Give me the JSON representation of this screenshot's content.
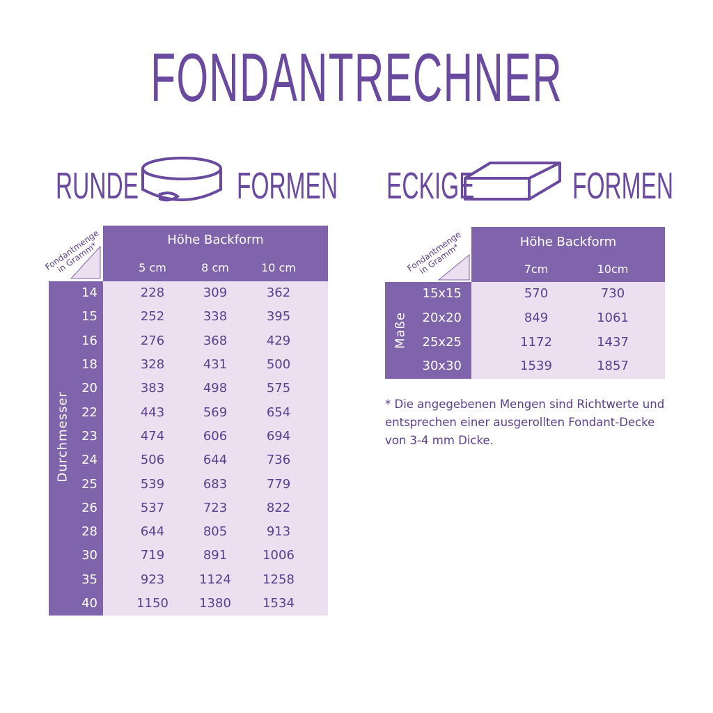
{
  "title": "FONDANTRECHNER",
  "round": {
    "label_left": "RUNDE",
    "label_right": "FORMEN",
    "icon": "round-cake-pan-icon",
    "header": "Höhe Backform",
    "corner_line1": "Fondantmenge",
    "corner_line2": "in Gramm*",
    "row_axis": "Durchmesser",
    "columns": [
      "5 cm",
      "8 cm",
      "10 cm"
    ],
    "rows": [
      {
        "label": "14",
        "values": [
          "228",
          "309",
          "362"
        ]
      },
      {
        "label": "15",
        "values": [
          "252",
          "338",
          "395"
        ]
      },
      {
        "label": "16",
        "values": [
          "276",
          "368",
          "429"
        ]
      },
      {
        "label": "18",
        "values": [
          "328",
          "431",
          "500"
        ]
      },
      {
        "label": "20",
        "values": [
          "383",
          "498",
          "575"
        ]
      },
      {
        "label": "22",
        "values": [
          "443",
          "569",
          "654"
        ]
      },
      {
        "label": "23",
        "values": [
          "474",
          "606",
          "694"
        ]
      },
      {
        "label": "24",
        "values": [
          "506",
          "644",
          "736"
        ]
      },
      {
        "label": "25",
        "values": [
          "539",
          "683",
          "779"
        ]
      },
      {
        "label": "26",
        "values": [
          "537",
          "723",
          "822"
        ]
      },
      {
        "label": "28",
        "values": [
          "644",
          "805",
          "913"
        ]
      },
      {
        "label": "30",
        "values": [
          "719",
          "891",
          "1006"
        ]
      },
      {
        "label": "35",
        "values": [
          "923",
          "1124",
          "1258"
        ]
      },
      {
        "label": "40",
        "values": [
          "1150",
          "1380",
          "1534"
        ]
      }
    ]
  },
  "square": {
    "label_left": "ECKIGE",
    "label_right": "FORMEN",
    "icon": "square-cake-pan-icon",
    "header": "Höhe Backform",
    "corner_line1": "Fondantmenge",
    "corner_line2": "in Gramm*",
    "row_axis": "Maße",
    "columns": [
      "7cm",
      "10cm"
    ],
    "rows": [
      {
        "label": "15x15",
        "values": [
          "570",
          "730"
        ]
      },
      {
        "label": "20x20",
        "values": [
          "849",
          "1061"
        ]
      },
      {
        "label": "25x25",
        "values": [
          "1172",
          "1437"
        ]
      },
      {
        "label": "30x30",
        "values": [
          "1539",
          "1857"
        ]
      }
    ]
  },
  "footnote": "* Die angegebenen Mengen sind Richtwerte und entsprechen einer ausgerollten Fondant-Decke von 3-4 mm Dicke.",
  "colors": {
    "header": "#7f63ab",
    "cell": "#ebdff0",
    "text": "#5b3f8c",
    "title": "#6a4a9f"
  }
}
